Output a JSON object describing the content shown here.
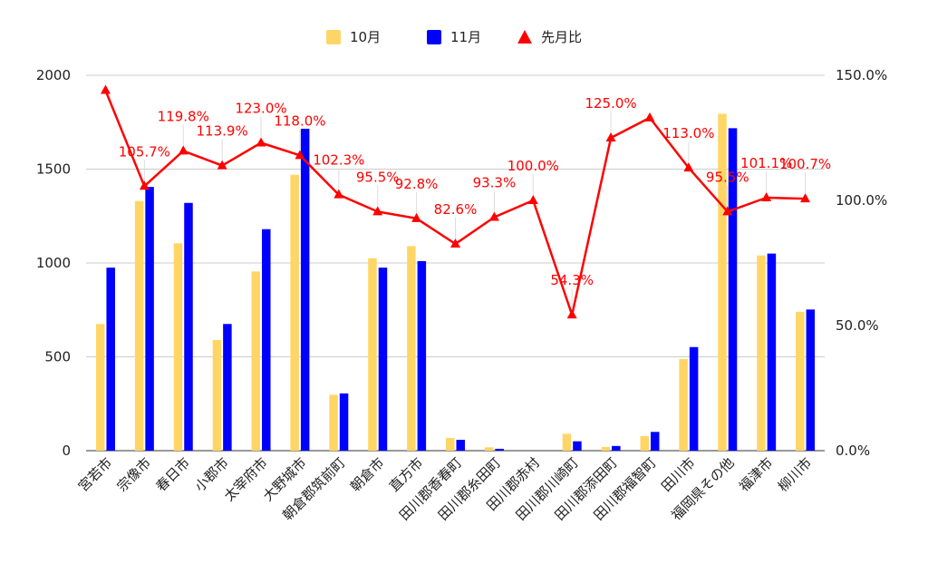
{
  "chart_data": {
    "type": "bar",
    "categories": [
      "宮若市",
      "宗像市",
      "春日市",
      "小郡市",
      "太宰府市",
      "大野城市",
      "朝倉郡筑前町",
      "朝倉市",
      "直方市",
      "田川郡香春町",
      "田川郡糸田町",
      "田川郡赤村",
      "田川郡川崎町",
      "田川郡添田町",
      "田川郡福智町",
      "田川市",
      "福岡県その他",
      "福津市",
      "柳川市"
    ],
    "series": [
      {
        "name": "10月",
        "type": "bar",
        "axis": "left",
        "color": "#ffd666",
        "values": [
          675,
          1330,
          1105,
          590,
          955,
          1470,
          298,
          1025,
          1090,
          68,
          18,
          0,
          90,
          20,
          78,
          488,
          1795,
          1040,
          740
        ]
      },
      {
        "name": "11月",
        "type": "bar",
        "axis": "left",
        "color": "#0000ff",
        "values": [
          975,
          1405,
          1320,
          675,
          1180,
          1715,
          305,
          975,
          1010,
          58,
          10,
          0,
          50,
          25,
          100,
          552,
          1718,
          1050,
          752
        ]
      },
      {
        "name": "先月比",
        "type": "line",
        "axis": "right",
        "color": "#ff0000",
        "unit": "%",
        "values": [
          144.0,
          105.7,
          119.8,
          113.9,
          123.0,
          118.0,
          102.3,
          95.5,
          92.8,
          82.6,
          93.3,
          100.0,
          54.3,
          125.0,
          133.0,
          113.0,
          95.5,
          101.1,
          100.7
        ],
        "labels": [
          null,
          "105.7%",
          "119.8%",
          "113.9%",
          "123.0%",
          "118.0%",
          "102.3%",
          "95.5%",
          "92.8%",
          "82.6%",
          "93.3%",
          "100.0%",
          "54.3%",
          "125.0%",
          null,
          "113.0%",
          "95.5%",
          "101.1%",
          "100.7%"
        ]
      }
    ],
    "y_left": {
      "min": 0,
      "max": 2000,
      "ticks": [
        "0",
        "500",
        "1000",
        "1500",
        "2000"
      ]
    },
    "y_right": {
      "min": 0,
      "max": 150,
      "ticks": [
        "0.0%",
        "50.0%",
        "100.0%",
        "150.0%"
      ]
    },
    "grid": true,
    "legend": "top-center",
    "title": "",
    "xlabel": "",
    "ylabel": ""
  }
}
